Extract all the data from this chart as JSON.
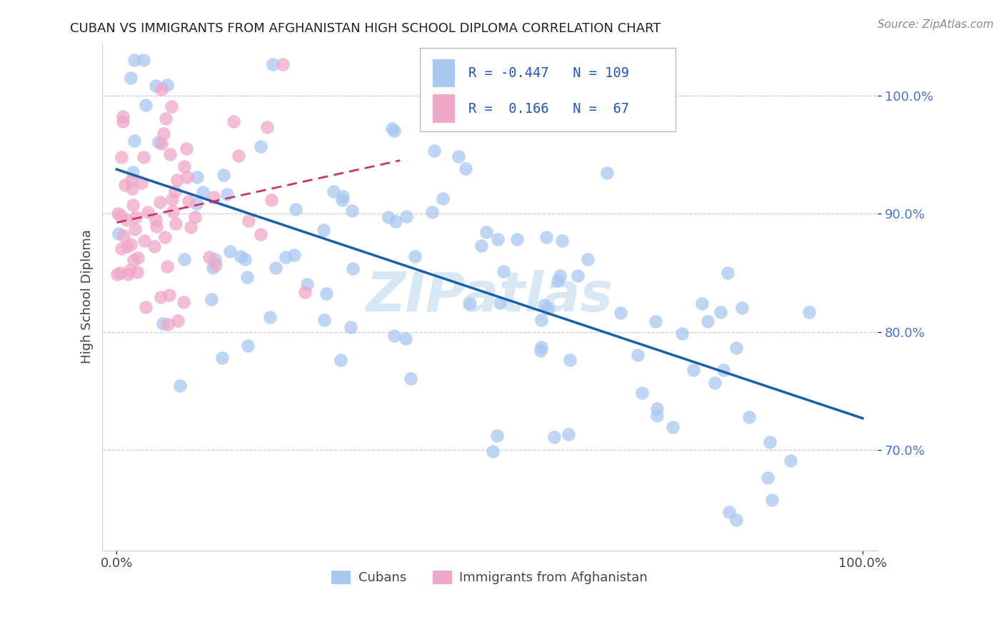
{
  "title": "CUBAN VS IMMIGRANTS FROM AFGHANISTAN HIGH SCHOOL DIPLOMA CORRELATION CHART",
  "source": "Source: ZipAtlas.com",
  "ylabel": "High School Diploma",
  "blue_color": "#a8c8f0",
  "pink_color": "#f0a8c8",
  "trend_blue": "#1a5faa",
  "trend_pink": "#cc3366",
  "watermark": "ZIPatlas",
  "xlim": [
    -0.02,
    1.02
  ],
  "ylim": [
    0.615,
    1.045
  ],
  "yticks": [
    0.7,
    0.8,
    0.9,
    1.0
  ],
  "ytick_labels": [
    "70.0%",
    "80.0%",
    "90.0%",
    "100.0%"
  ],
  "xtick_labels": [
    "0.0%",
    "100.0%"
  ],
  "legend_label1": "Cubans",
  "legend_label2": "Immigrants from Afghanistan",
  "n_blue": 109,
  "n_pink": 67,
  "r_blue": -0.447,
  "r_pink": 0.166,
  "seed": 12345
}
